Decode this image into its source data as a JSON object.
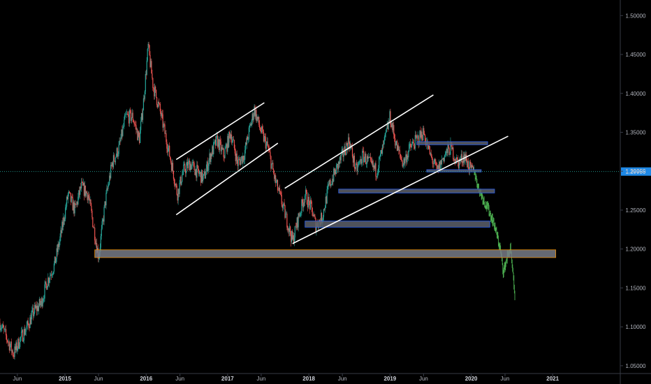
{
  "chart_data": {
    "type": "candlestick",
    "instrument_hint": "",
    "title": "",
    "colors": {
      "background": "#000000",
      "axis_line": "#363a45",
      "tick_text": "#b2b5be",
      "candle_up": "#26a69a",
      "candle_down": "#ef5350",
      "projection": "#4caf50",
      "trendline": "#ffffff",
      "zone_fill": "#5d606b",
      "zone_border": "#2962ff",
      "zone_wide_fill": "#787b86",
      "zone_wide_border": "#ff9800",
      "current_price_line": "#26a69a",
      "current_price_tag": "#1e88e5"
    },
    "y_axis": {
      "ylim": [
        1.04,
        1.52
      ],
      "ticks": [
        "1.50000",
        "1.45000",
        "1.40000",
        "1.35000",
        "1.30000",
        "1.25000",
        "1.20000",
        "1.15000",
        "1.10000",
        "1.05000"
      ],
      "tick_values": [
        1.5,
        1.45,
        1.4,
        1.35,
        1.3,
        1.25,
        1.2,
        1.15,
        1.1,
        1.05
      ]
    },
    "x_axis": {
      "xlim": [
        "2014-03-15",
        "2021-11-01"
      ],
      "ticks": [
        {
          "label": "Jun",
          "date": "2014-06-01",
          "year": false
        },
        {
          "label": "2015",
          "date": "2015-01-01",
          "year": true
        },
        {
          "label": "Jun",
          "date": "2015-06-01",
          "year": false
        },
        {
          "label": "2016",
          "date": "2016-01-01",
          "year": true
        },
        {
          "label": "Jun",
          "date": "2016-06-01",
          "year": false
        },
        {
          "label": "2017",
          "date": "2017-01-01",
          "year": true
        },
        {
          "label": "Jun",
          "date": "2017-06-01",
          "year": false
        },
        {
          "label": "2018",
          "date": "2018-01-01",
          "year": true
        },
        {
          "label": "Jun",
          "date": "2018-06-01",
          "year": false
        },
        {
          "label": "2019",
          "date": "2019-01-01",
          "year": true
        },
        {
          "label": "Jun",
          "date": "2019-06-01",
          "year": false
        },
        {
          "label": "2020",
          "date": "2020-01-01",
          "year": true
        },
        {
          "label": "Jun",
          "date": "2020-06-01",
          "year": false
        },
        {
          "label": "2021",
          "date": "2021-01-01",
          "year": true
        }
      ]
    },
    "current_price": {
      "label": "1.29955",
      "value": 1.29955
    },
    "price_path": [
      [
        "2014-03-15",
        1.105
      ],
      [
        "2014-04-15",
        1.085
      ],
      [
        "2014-05-15",
        1.065
      ],
      [
        "2014-06-15",
        1.085
      ],
      [
        "2014-07-15",
        1.1
      ],
      [
        "2014-08-15",
        1.12
      ],
      [
        "2014-09-15",
        1.13
      ],
      [
        "2014-10-15",
        1.16
      ],
      [
        "2014-11-15",
        1.18
      ],
      [
        "2014-12-15",
        1.22
      ],
      [
        "2015-01-15",
        1.27
      ],
      [
        "2015-02-15",
        1.25
      ],
      [
        "2015-03-15",
        1.28
      ],
      [
        "2015-04-15",
        1.27
      ],
      [
        "2015-05-15",
        1.22
      ],
      [
        "2015-06-01",
        1.19
      ],
      [
        "2015-07-01",
        1.26
      ],
      [
        "2015-08-01",
        1.31
      ],
      [
        "2015-09-01",
        1.33
      ],
      [
        "2015-10-01",
        1.37
      ],
      [
        "2015-11-01",
        1.37
      ],
      [
        "2015-12-01",
        1.34
      ],
      [
        "2015-12-20",
        1.39
      ],
      [
        "2016-01-10",
        1.46
      ],
      [
        "2016-02-01",
        1.41
      ],
      [
        "2016-03-01",
        1.38
      ],
      [
        "2016-04-01",
        1.34
      ],
      [
        "2016-05-01",
        1.3
      ],
      [
        "2016-05-20",
        1.27
      ],
      [
        "2016-06-15",
        1.3
      ],
      [
        "2016-07-15",
        1.31
      ],
      [
        "2016-08-15",
        1.3
      ],
      [
        "2016-09-15",
        1.29
      ],
      [
        "2016-10-15",
        1.32
      ],
      [
        "2016-11-15",
        1.34
      ],
      [
        "2016-12-15",
        1.32
      ],
      [
        "2017-01-15",
        1.35
      ],
      [
        "2017-02-15",
        1.31
      ],
      [
        "2017-03-15",
        1.32
      ],
      [
        "2017-04-15",
        1.36
      ],
      [
        "2017-05-01",
        1.38
      ],
      [
        "2017-06-01",
        1.35
      ],
      [
        "2017-07-01",
        1.33
      ],
      [
        "2017-08-01",
        1.29
      ],
      [
        "2017-09-01",
        1.26
      ],
      [
        "2017-10-01",
        1.23
      ],
      [
        "2017-10-20",
        1.21
      ],
      [
        "2017-11-15",
        1.24
      ],
      [
        "2017-12-15",
        1.27
      ],
      [
        "2018-01-15",
        1.25
      ],
      [
        "2018-02-01",
        1.23
      ],
      [
        "2018-03-01",
        1.24
      ],
      [
        "2018-04-01",
        1.28
      ],
      [
        "2018-05-01",
        1.3
      ],
      [
        "2018-06-01",
        1.32
      ],
      [
        "2018-07-01",
        1.34
      ],
      [
        "2018-08-01",
        1.3
      ],
      [
        "2018-09-01",
        1.32
      ],
      [
        "2018-10-01",
        1.31
      ],
      [
        "2018-11-01",
        1.3
      ],
      [
        "2018-12-01",
        1.33
      ],
      [
        "2019-01-01",
        1.37
      ],
      [
        "2019-02-01",
        1.33
      ],
      [
        "2019-03-01",
        1.31
      ],
      [
        "2019-04-01",
        1.33
      ],
      [
        "2019-05-01",
        1.34
      ],
      [
        "2019-06-01",
        1.35
      ],
      [
        "2019-07-01",
        1.32
      ],
      [
        "2019-08-01",
        1.3
      ],
      [
        "2019-09-01",
        1.32
      ],
      [
        "2019-10-01",
        1.33
      ],
      [
        "2019-11-01",
        1.31
      ],
      [
        "2019-12-01",
        1.32
      ],
      [
        "2020-01-01",
        1.3
      ],
      [
        "2020-01-15",
        1.29955
      ]
    ],
    "projection_path": [
      [
        "2020-01-15",
        1.29955
      ],
      [
        "2020-02-01",
        1.28
      ],
      [
        "2020-03-01",
        1.26
      ],
      [
        "2020-03-20",
        1.25
      ],
      [
        "2020-04-15",
        1.23
      ],
      [
        "2020-05-10",
        1.2
      ],
      [
        "2020-05-25",
        1.17
      ],
      [
        "2020-06-10",
        1.19
      ],
      [
        "2020-06-25",
        1.2
      ],
      [
        "2020-07-15",
        1.14
      ]
    ],
    "annotations": {
      "trendlines": [
        {
          "name": "channel-2016-upper",
          "from": [
            "2016-05-15",
            1.315
          ],
          "to": [
            "2017-06-15",
            1.388
          ]
        },
        {
          "name": "channel-2016-lower",
          "from": [
            "2016-05-15",
            1.244
          ],
          "to": [
            "2017-08-15",
            1.336
          ]
        },
        {
          "name": "channel-2018-upper",
          "from": [
            "2017-09-15",
            1.278
          ],
          "to": [
            "2019-07-15",
            1.398
          ]
        },
        {
          "name": "channel-2018-lower",
          "from": [
            "2017-10-20",
            1.207
          ],
          "to": [
            "2020-06-15",
            1.345
          ]
        }
      ],
      "zones": [
        {
          "name": "zone-1-33",
          "from": "2019-05-01",
          "to": "2020-03-15",
          "low": 1.334,
          "high": 1.338,
          "wide": false
        },
        {
          "name": "zone-1-30",
          "from": "2019-06-15",
          "to": "2020-02-15",
          "low": 1.299,
          "high": 1.302,
          "wide": false
        },
        {
          "name": "zone-1-275",
          "from": "2018-05-15",
          "to": "2020-04-15",
          "low": 1.272,
          "high": 1.277,
          "wide": false
        },
        {
          "name": "zone-1-23",
          "from": "2017-12-15",
          "to": "2020-03-25",
          "low": 1.228,
          "high": 1.236,
          "wide": false
        },
        {
          "name": "zone-1-195",
          "from": "2015-05-15",
          "to": "2021-01-15",
          "low": 1.189,
          "high": 1.199,
          "wide": true
        }
      ]
    }
  }
}
